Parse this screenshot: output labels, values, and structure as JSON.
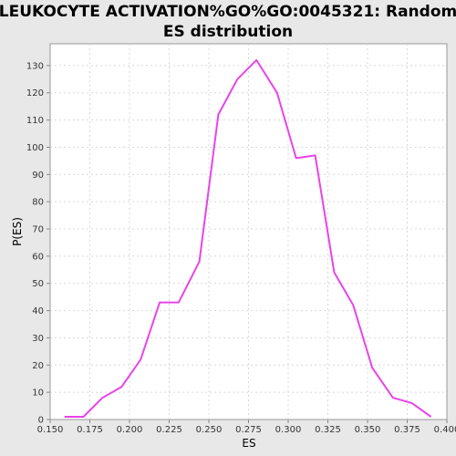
{
  "chart_data": {
    "type": "line",
    "title_line1": "LEUKOCYTE ACTIVATION%GO%GO:0045321: Random",
    "title_line2": "ES distribution",
    "xlabel": "ES",
    "ylabel": "P(ES)",
    "xlim": [
      0.15,
      0.4
    ],
    "ylim": [
      0,
      138
    ],
    "xticks": [
      0.15,
      0.175,
      0.2,
      0.225,
      0.25,
      0.275,
      0.3,
      0.325,
      0.35,
      0.375,
      0.4
    ],
    "xtick_labels": [
      "0.150",
      "0.175",
      "0.200",
      "0.225",
      "0.250",
      "0.275",
      "0.300",
      "0.325",
      "0.350",
      "0.375",
      "0.400"
    ],
    "yticks": [
      0,
      10,
      20,
      30,
      40,
      50,
      60,
      70,
      80,
      90,
      100,
      110,
      120,
      130
    ],
    "ytick_labels": [
      "0",
      "10",
      "20",
      "30",
      "40",
      "50",
      "60",
      "70",
      "80",
      "90",
      "100",
      "110",
      "120",
      "130"
    ],
    "grid": true,
    "series": [
      {
        "color": "#e844e8",
        "x": [
          0.159,
          0.171,
          0.183,
          0.195,
          0.207,
          0.219,
          0.231,
          0.244,
          0.256,
          0.268,
          0.28,
          0.293,
          0.305,
          0.317,
          0.329,
          0.341,
          0.353,
          0.366,
          0.378,
          0.39
        ],
        "y": [
          1,
          1,
          8,
          12,
          22,
          43,
          43,
          58,
          112,
          125,
          132,
          120,
          96,
          97,
          54,
          42,
          19,
          8,
          6,
          1
        ]
      }
    ]
  }
}
